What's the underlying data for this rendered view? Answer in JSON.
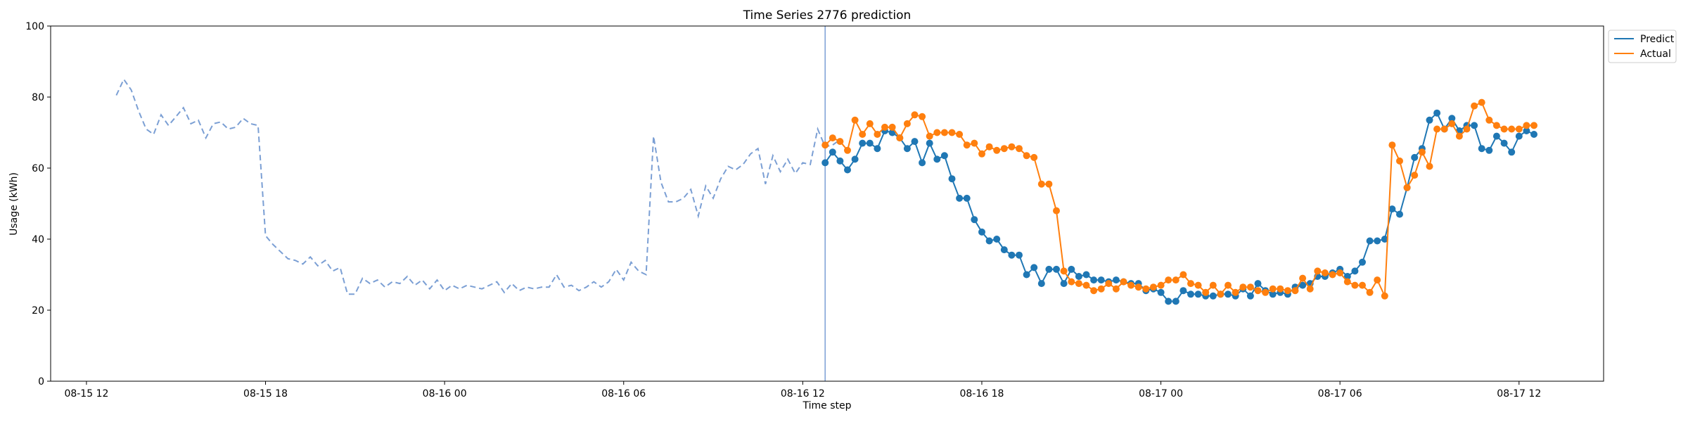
{
  "chart_data": {
    "type": "line",
    "title": "Time Series 2776 prediction",
    "xlabel": "Time step",
    "ylabel": "Usage (kWh)",
    "ylim": [
      0,
      100
    ],
    "yticks": [
      0,
      20,
      40,
      60,
      80,
      100
    ],
    "xlim": [
      "2023-08-15 10:48",
      "2023-08-17 14:50"
    ],
    "xticks": [
      {
        "t": "2023-08-15 12:00",
        "label": "08-15 12"
      },
      {
        "t": "2023-08-15 18:00",
        "label": "08-15 18"
      },
      {
        "t": "2023-08-16 00:00",
        "label": "08-16 00"
      },
      {
        "t": "2023-08-16 06:00",
        "label": "08-16 06"
      },
      {
        "t": "2023-08-16 12:00",
        "label": "08-16 12"
      },
      {
        "t": "2023-08-16 18:00",
        "label": "08-16 18"
      },
      {
        "t": "2023-08-17 00:00",
        "label": "08-17 00"
      },
      {
        "t": "2023-08-17 06:00",
        "label": "08-17 06"
      },
      {
        "t": "2023-08-17 12:00",
        "label": "08-17 12"
      }
    ],
    "grid": false,
    "legend_position": "upper-right-outside",
    "forecast_start": "2023-08-16 12:45",
    "history": {
      "color": "#7b9fd4",
      "style": "dashed",
      "start": "2023-08-15 13:00",
      "step_minutes": 15,
      "values": [
        80.5,
        85,
        82,
        76,
        71,
        69.5,
        75,
        72,
        74.5,
        77,
        72.5,
        73.5,
        68.5,
        72.5,
        73,
        71,
        71.5,
        74,
        72.5,
        72,
        41,
        38.5,
        36.5,
        34.5,
        34,
        33,
        35,
        32.5,
        34,
        31,
        32,
        24.5,
        24.5,
        29,
        27.5,
        28.5,
        26.5,
        28,
        27.5,
        29.5,
        27,
        28.5,
        26,
        28.5,
        25.5,
        27,
        26,
        27,
        26.5,
        26,
        27,
        28,
        25,
        27.5,
        25.5,
        26.5,
        26,
        26.5,
        26.5,
        30,
        26.5,
        27,
        25.5,
        26.5,
        28,
        26.5,
        28,
        31.5,
        28.5,
        33.5,
        31,
        30,
        69,
        56,
        50.5,
        50.5,
        51.5,
        54,
        46.5,
        55,
        51.5,
        57,
        60.5,
        59.5,
        61,
        64,
        65.5,
        55.5,
        63.5,
        59,
        62.5,
        58.5,
        61.5,
        61,
        71,
        66,
        66.5,
        68
      ]
    },
    "series": [
      {
        "name": "Predict",
        "color": "#1f77b4",
        "start": "2023-08-16 12:45",
        "step_minutes": 15,
        "values": [
          61.5,
          64.5,
          62,
          59.5,
          62.5,
          67,
          67,
          65.5,
          70.5,
          70,
          68.5,
          65.5,
          67.5,
          61.5,
          67,
          62.5,
          63.5,
          57,
          51.5,
          51.5,
          45.5,
          42,
          39.5,
          40,
          37,
          35.5,
          35.5,
          30,
          32,
          27.5,
          31.5,
          31.5,
          27.5,
          31.5,
          29.5,
          30,
          28.5,
          28.5,
          28,
          28.5,
          28,
          27.5,
          27.5,
          25.5,
          26,
          25,
          22.5,
          22.5,
          25.5,
          24.5,
          24.5,
          24,
          24,
          24.5,
          24.5,
          24,
          26,
          24,
          27.5,
          25.5,
          24.5,
          25,
          24.5,
          26.5,
          27,
          27.5,
          29.5,
          29.5,
          30.5,
          31.5,
          29.5,
          31,
          33.5,
          39.5,
          39.5,
          40,
          48.5,
          47,
          54.5,
          63,
          65.5,
          73.5,
          75.5,
          71,
          74,
          70.5,
          72,
          72,
          65.5,
          65,
          69,
          67,
          64.5,
          69,
          70.5,
          69.5
        ]
      },
      {
        "name": "Actual",
        "color": "#ff7f0e",
        "start": "2023-08-16 12:45",
        "step_minutes": 15,
        "values": [
          66.5,
          68.5,
          67.5,
          65,
          73.5,
          69.5,
          72.5,
          69.5,
          71.5,
          71.5,
          68.5,
          72.5,
          75,
          74.5,
          69,
          70,
          70,
          70,
          69.5,
          66.5,
          67,
          64,
          66,
          65,
          65.5,
          66,
          65.5,
          63.5,
          63,
          55.5,
          55.5,
          48,
          31,
          28,
          27.5,
          27,
          25.5,
          26,
          27.5,
          26,
          28,
          27,
          26.5,
          26,
          26.5,
          27,
          28.5,
          28.5,
          30,
          27.5,
          27,
          25,
          27,
          24.5,
          27,
          25,
          26.5,
          26.5,
          25.5,
          25,
          26,
          26,
          25.5,
          25.5,
          29,
          26,
          31,
          30.5,
          30,
          30.5,
          28,
          27,
          27,
          25,
          28.5,
          24,
          66.5,
          62,
          54.5,
          58,
          64.5,
          60.5,
          71,
          71,
          72.5,
          69,
          71,
          77.5,
          78.5,
          73.5,
          72,
          71,
          71,
          71,
          72,
          72
        ]
      }
    ]
  }
}
